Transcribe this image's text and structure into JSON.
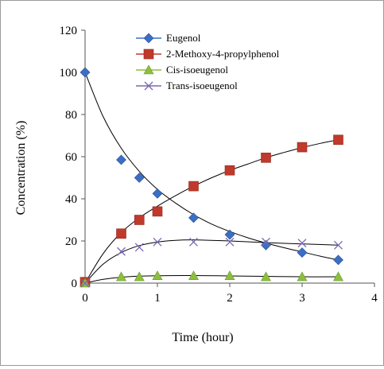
{
  "chart_data": {
    "type": "scatter",
    "title": "",
    "xlabel": "Time (hour)",
    "ylabel": "Concentration (%)",
    "xlim": [
      0,
      4
    ],
    "ylim": [
      0,
      120
    ],
    "xticks": [
      0,
      1,
      2,
      3,
      4
    ],
    "yticks": [
      0,
      20,
      40,
      60,
      80,
      100,
      120
    ],
    "grid": false,
    "legend_position": "top-right",
    "series": [
      {
        "name": "Eugenol",
        "marker": "diamond",
        "color": "#3a6fc4",
        "x": [
          0,
          0.5,
          0.75,
          1,
          1.5,
          2,
          2.5,
          3,
          3.5
        ],
        "y": [
          100,
          58.5,
          50,
          42.5,
          31,
          23,
          18,
          14.5,
          11
        ],
        "trend": [
          [
            0,
            100
          ],
          [
            0.25,
            79
          ],
          [
            0.5,
            64
          ],
          [
            0.75,
            53
          ],
          [
            1,
            44.5
          ],
          [
            1.25,
            38
          ],
          [
            1.5,
            32.5
          ],
          [
            1.75,
            28
          ],
          [
            2,
            24.5
          ],
          [
            2.25,
            21.5
          ],
          [
            2.5,
            19
          ],
          [
            2.75,
            16.8
          ],
          [
            3,
            14.8
          ],
          [
            3.25,
            12.8
          ],
          [
            3.5,
            11
          ]
        ]
      },
      {
        "name": "2-Methoxy-4-propylphenol",
        "marker": "square",
        "color": "#c0392b",
        "x": [
          0,
          0.5,
          0.75,
          1,
          1.5,
          2,
          2.5,
          3,
          3.5
        ],
        "y": [
          0.5,
          23.5,
          30,
          34,
          46,
          53.5,
          59.5,
          64.5,
          68
        ],
        "trend": [
          [
            0,
            0
          ],
          [
            0.25,
            14
          ],
          [
            0.5,
            24
          ],
          [
            0.75,
            31
          ],
          [
            1,
            36.5
          ],
          [
            1.25,
            41.5
          ],
          [
            1.5,
            46
          ],
          [
            1.75,
            50
          ],
          [
            2,
            53.5
          ],
          [
            2.25,
            56.5
          ],
          [
            2.5,
            59.5
          ],
          [
            2.75,
            62
          ],
          [
            3,
            64.3
          ],
          [
            3.25,
            66.3
          ],
          [
            3.5,
            68
          ]
        ]
      },
      {
        "name": "Cis-isoeugenol",
        "marker": "triangle",
        "color": "#8cbf3f",
        "x": [
          0,
          0.5,
          0.75,
          1,
          1.5,
          2,
          2.5,
          3,
          3.5
        ],
        "y": [
          0,
          3,
          3,
          3.5,
          3.5,
          3.5,
          3,
          3,
          3
        ],
        "trend": [
          [
            0,
            0
          ],
          [
            0.25,
            1.8
          ],
          [
            0.5,
            2.8
          ],
          [
            0.75,
            3.3
          ],
          [
            1,
            3.5
          ],
          [
            1.5,
            3.6
          ],
          [
            2,
            3.4
          ],
          [
            2.5,
            3.2
          ],
          [
            3,
            3
          ],
          [
            3.5,
            3
          ]
        ]
      },
      {
        "name": "Trans-isoeugenol",
        "marker": "x",
        "color": "#7b68b0",
        "x": [
          0,
          0.5,
          0.75,
          1,
          1.5,
          2,
          2.5,
          3,
          3.5
        ],
        "y": [
          0,
          15,
          17,
          19.5,
          19.5,
          19.5,
          19.5,
          19,
          18
        ],
        "trend": [
          [
            0,
            0
          ],
          [
            0.25,
            9
          ],
          [
            0.5,
            14.5
          ],
          [
            0.75,
            17.8
          ],
          [
            1,
            19.5
          ],
          [
            1.25,
            20.3
          ],
          [
            1.5,
            20.5
          ],
          [
            2,
            20
          ],
          [
            2.5,
            19.2
          ],
          [
            3,
            18.6
          ],
          [
            3.5,
            18
          ]
        ]
      }
    ]
  }
}
